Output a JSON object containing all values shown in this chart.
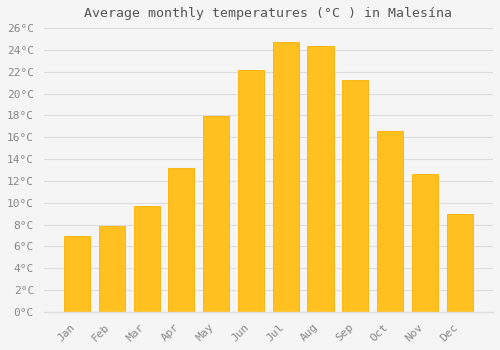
{
  "title": "Average monthly temperatures (°C ) in Malesína",
  "months": [
    "Jan",
    "Feb",
    "Mar",
    "Apr",
    "May",
    "Jun",
    "Jul",
    "Aug",
    "Sep",
    "Oct",
    "Nov",
    "Dec"
  ],
  "values": [
    7.0,
    7.9,
    9.7,
    13.2,
    17.9,
    22.2,
    24.7,
    24.4,
    21.2,
    16.6,
    12.6,
    9.0
  ],
  "bar_color": "#FFC020",
  "bar_edge_color": "#FFB000",
  "background_color": "#F5F5F5",
  "plot_bg_color": "#F5F5F5",
  "grid_color": "#DDDDDD",
  "ylim": [
    0,
    26
  ],
  "yticks": [
    0,
    2,
    4,
    6,
    8,
    10,
    12,
    14,
    16,
    18,
    20,
    22,
    24,
    26
  ],
  "ytick_labels": [
    "0°C",
    "2°C",
    "4°C",
    "6°C",
    "8°C",
    "10°C",
    "12°C",
    "14°C",
    "16°C",
    "18°C",
    "20°C",
    "22°C",
    "24°C",
    "26°C"
  ],
  "title_fontsize": 9.5,
  "tick_fontsize": 8,
  "tick_color": "#888888",
  "title_color": "#555555",
  "bar_width": 0.75
}
